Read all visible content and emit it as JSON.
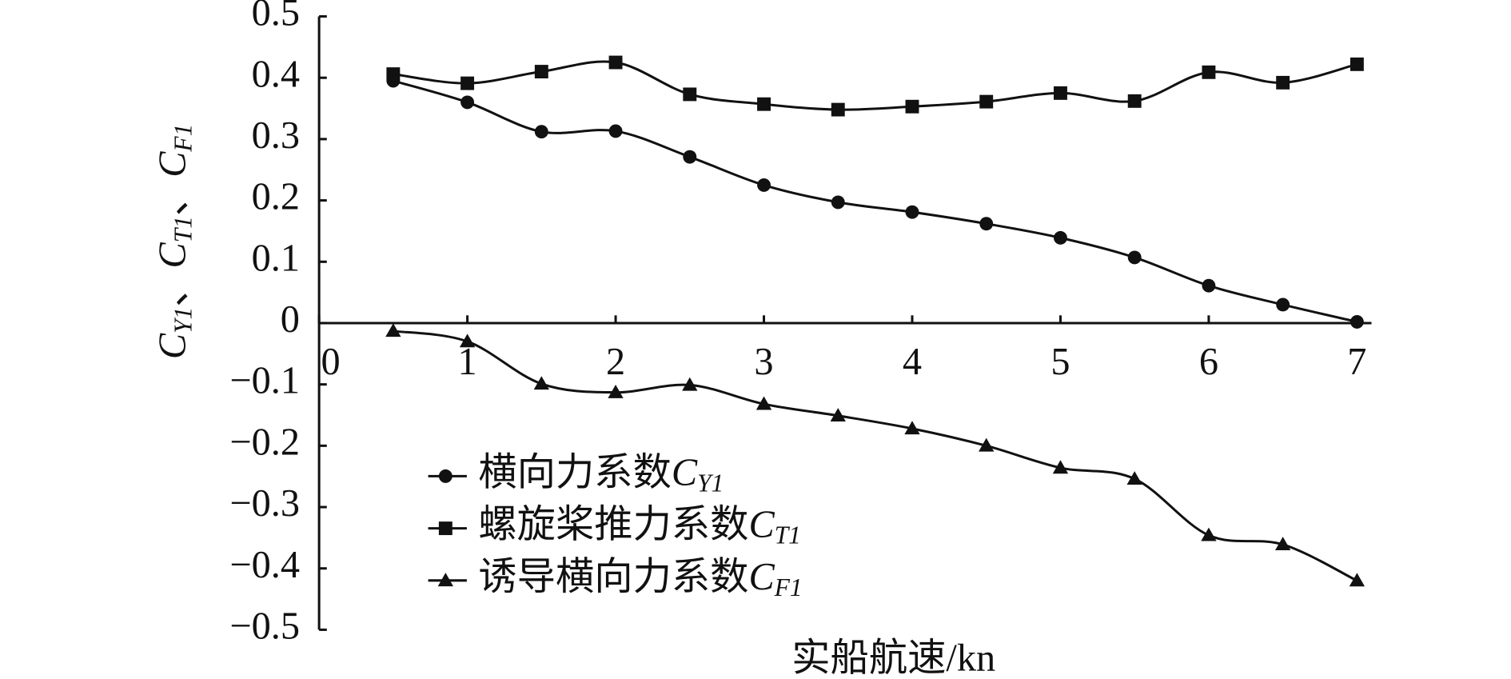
{
  "chart_data": {
    "type": "line",
    "x_label": "实船航速/kn",
    "y_label": "CY1、CT1、CF1",
    "x": [
      0.5,
      1,
      1.5,
      2,
      2.5,
      3,
      3.5,
      4,
      4.5,
      5,
      5.5,
      6,
      6.5,
      7
    ],
    "series": [
      {
        "name": "横向力系数CY1",
        "color": "#111111",
        "marker": "circle",
        "values": [
          0.395,
          0.36,
          0.312,
          0.313,
          0.271,
          0.225,
          0.197,
          0.181,
          0.162,
          0.139,
          0.107,
          0.061,
          0.03,
          0.002
        ]
      },
      {
        "name": "螺旋桨推力系数CT1",
        "color": "#111111",
        "marker": "square",
        "values": [
          0.406,
          0.391,
          0.41,
          0.425,
          0.373,
          0.357,
          0.348,
          0.353,
          0.361,
          0.375,
          0.362,
          0.409,
          0.392,
          0.422
        ]
      },
      {
        "name": "诱导横向力系数CF1",
        "color": "#111111",
        "marker": "triangle",
        "values": [
          -0.013,
          -0.03,
          -0.099,
          -0.113,
          -0.101,
          -0.132,
          -0.151,
          -0.172,
          -0.2,
          -0.236,
          -0.254,
          -0.346,
          -0.361,
          -0.42
        ]
      }
    ],
    "xlim": [
      0,
      7
    ],
    "xticks": [
      0,
      1,
      2,
      3,
      4,
      5,
      6,
      7
    ],
    "ylim": [
      -0.5,
      0.5
    ],
    "yticks": [
      {
        "value": -0.5,
        "label": "−0.5"
      },
      {
        "value": -0.4,
        "label": "−0.4"
      },
      {
        "value": -0.3,
        "label": "−0.3"
      },
      {
        "value": -0.2,
        "label": "−0.2"
      },
      {
        "value": -0.1,
        "label": "−0.1"
      },
      0,
      0.1,
      0.2,
      0.3,
      0.4,
      0.5
    ],
    "grid": false,
    "smooth": true,
    "legend": "lower left"
  }
}
